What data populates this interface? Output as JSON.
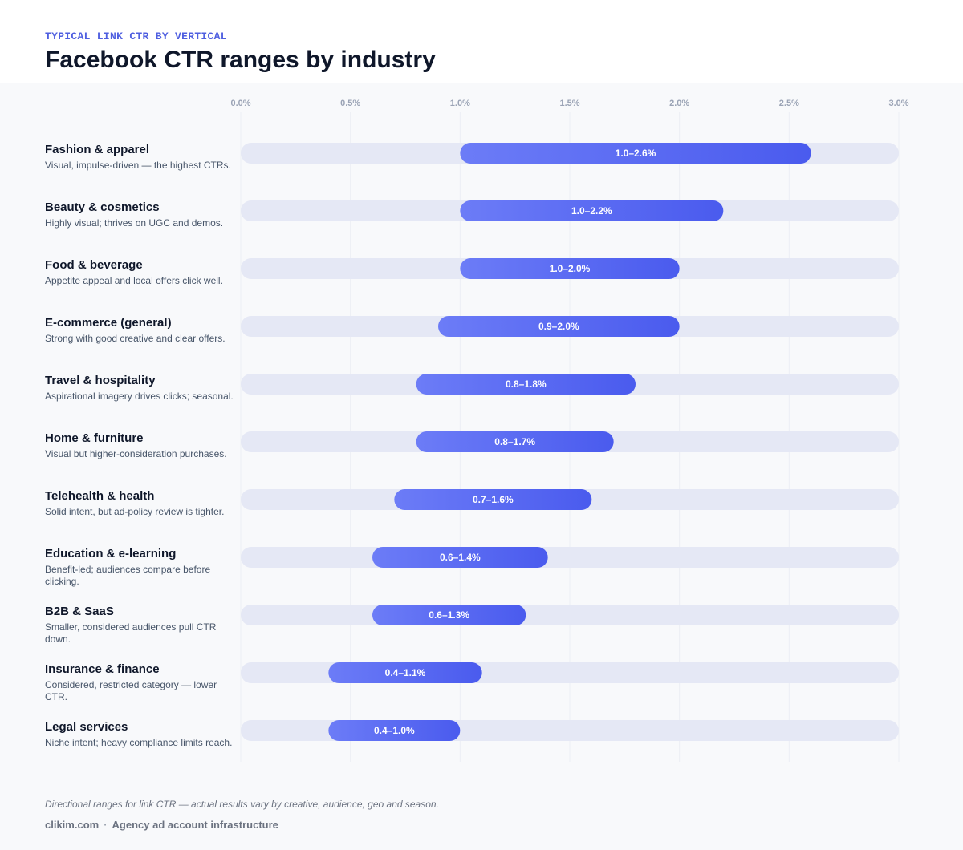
{
  "header": {
    "eyebrow": "TYPICAL LINK CTR BY VERTICAL",
    "title": "Facebook CTR ranges by industry"
  },
  "colors": {
    "bar_start": "#6c7cf7",
    "bar_end": "#4a5bee",
    "track": "#e5e8f5",
    "grid": "#eceef4",
    "tick_text": "#9aa3b5"
  },
  "chart_data": {
    "type": "bar",
    "orientation": "horizontal",
    "subtype": "range",
    "xlim": [
      0,
      3.0
    ],
    "x_ticks": [
      0,
      0.5,
      1.0,
      1.5,
      2.0,
      2.5,
      3.0
    ],
    "x_tick_labels": [
      "0.0%",
      "0.5%",
      "1.0%",
      "1.5%",
      "2.0%",
      "2.5%",
      "3.0%"
    ],
    "grid": true,
    "categories": [
      "Fashion & apparel",
      "Beauty & cosmetics",
      "Food & beverage",
      "E-commerce (general)",
      "Travel & hospitality",
      "Home & furniture",
      "Telehealth & health",
      "Education & e-learning",
      "B2B & SaaS",
      "Insurance & finance",
      "Legal services"
    ],
    "descriptions": [
      "Visual, impulse-driven — the highest CTRs.",
      "Highly visual; thrives on UGC and demos.",
      "Appetite appeal and local offers click well.",
      "Strong with good creative and clear offers.",
      "Aspirational imagery drives clicks; seasonal.",
      "Visual but higher-consideration purchases.",
      "Solid intent, but ad-policy review is tighter.",
      "Benefit-led; audiences compare before clicking.",
      "Smaller, considered audiences pull CTR down.",
      "Considered, restricted category — lower CTR.",
      "Niche intent; heavy compliance limits reach."
    ],
    "low": [
      1.0,
      1.0,
      1.0,
      0.9,
      0.8,
      0.8,
      0.7,
      0.6,
      0.6,
      0.4,
      0.4
    ],
    "high": [
      2.6,
      2.2,
      2.0,
      2.0,
      1.8,
      1.7,
      1.6,
      1.4,
      1.3,
      1.1,
      1.0
    ],
    "data_labels": [
      "1.0–2.6%",
      "1.0–2.2%",
      "1.0–2.0%",
      "0.9–2.0%",
      "0.8–1.8%",
      "0.8–1.7%",
      "0.7–1.6%",
      "0.6–1.4%",
      "0.6–1.3%",
      "0.4–1.1%",
      "0.4–1.0%"
    ]
  },
  "note": "Directional ranges for link CTR — actual results vary by creative, audience, geo and season.",
  "footer": {
    "site": "clikim.com",
    "separator": "·",
    "tagline": "Agency ad account infrastructure"
  }
}
